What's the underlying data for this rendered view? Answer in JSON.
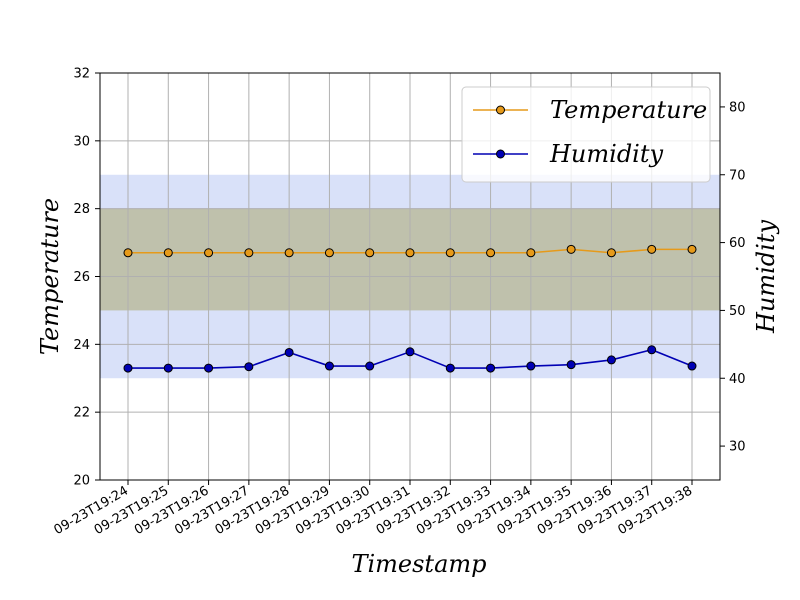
{
  "chart_data": {
    "type": "line",
    "xlabel": "Timestamp",
    "ylabel_left": "Temperature",
    "ylabel_right": "Humidity",
    "categories": [
      "09-23T19:24",
      "09-23T19:25",
      "09-23T19:26",
      "09-23T19:27",
      "09-23T19:28",
      "09-23T19:29",
      "09-23T19:30",
      "09-23T19:31",
      "09-23T19:32",
      "09-23T19:33",
      "09-23T19:34",
      "09-23T19:35",
      "09-23T19:36",
      "09-23T19:37",
      "09-23T19:38"
    ],
    "ylim_left": [
      20,
      32
    ],
    "ylim_right": [
      25,
      85
    ],
    "yticks_left": [
      "20",
      "22",
      "24",
      "26",
      "28",
      "30",
      "32"
    ],
    "yticks_right": [
      "30",
      "40",
      "50",
      "60",
      "70",
      "80"
    ],
    "grid": true,
    "legend_position": "top-right",
    "series": [
      {
        "name": "Temperature",
        "axis": "left",
        "color": "#e69a1a",
        "values": [
          26.7,
          26.7,
          26.7,
          26.7,
          26.7,
          26.7,
          26.7,
          26.7,
          26.7,
          26.7,
          26.7,
          26.8,
          26.7,
          26.8,
          26.8
        ]
      },
      {
        "name": "Humidity",
        "axis": "right",
        "color": "#0000b4",
        "values": [
          41.5,
          41.5,
          41.5,
          41.7,
          43.8,
          41.8,
          41.8,
          43.9,
          41.5,
          41.5,
          41.8,
          42.0,
          42.7,
          44.2,
          41.8
        ]
      }
    ],
    "bands": [
      {
        "axis": "left",
        "range": [
          23,
          29
        ],
        "color": "#a0b4f0"
      },
      {
        "axis": "left",
        "range": [
          25,
          28
        ],
        "color": "#b4b48c"
      }
    ]
  }
}
